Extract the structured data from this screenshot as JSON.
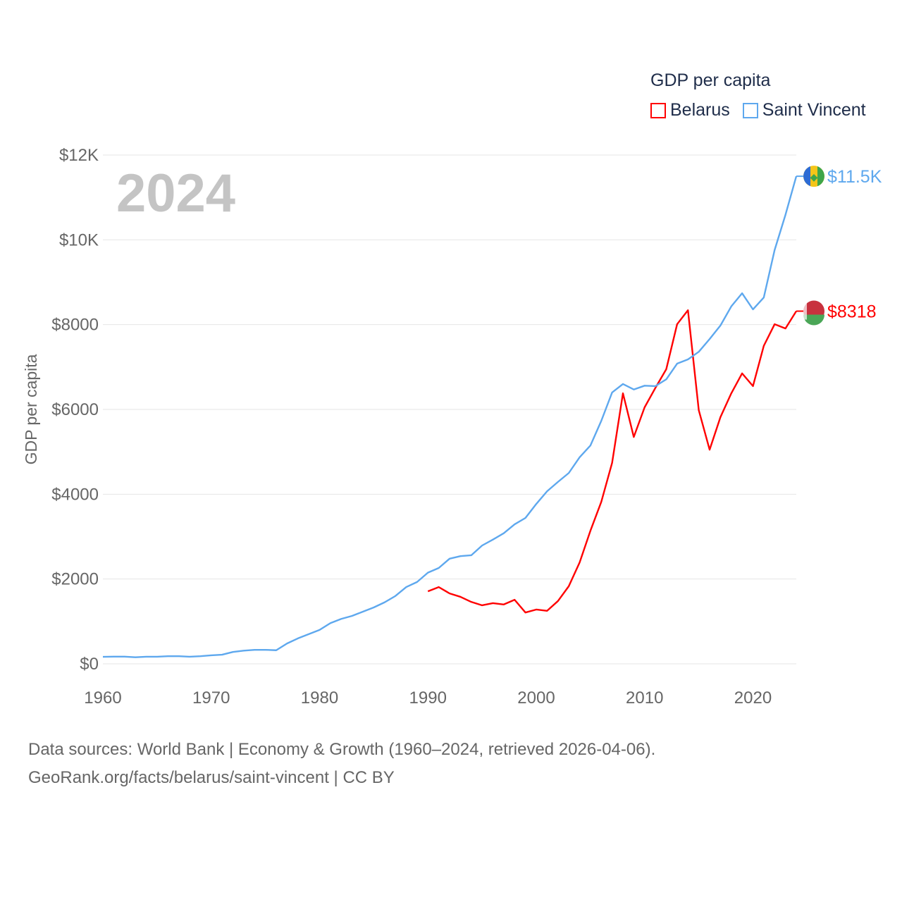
{
  "chart_data": {
    "type": "line",
    "title": "GDP per capita",
    "ylabel": "GDP per capita",
    "xlabel": "",
    "year_label": "2024",
    "xlim": [
      1960,
      2024
    ],
    "ylim": [
      0,
      12000
    ],
    "x_ticks": [
      "1960",
      "1970",
      "1980",
      "1990",
      "2000",
      "2010",
      "2020"
    ],
    "y_ticks": [
      {
        "value": 0,
        "label": "$0"
      },
      {
        "value": 2000,
        "label": "$2000"
      },
      {
        "value": 4000,
        "label": "$4000"
      },
      {
        "value": 6000,
        "label": "$6000"
      },
      {
        "value": 8000,
        "label": "$8000"
      },
      {
        "value": 10000,
        "label": "$10K"
      },
      {
        "value": 12000,
        "label": "$12K"
      }
    ],
    "grid": true,
    "legend_position": "top-right",
    "series": [
      {
        "name": "Belarus",
        "color": "#ff0000",
        "end_label": "$8318",
        "start_year": 1990,
        "values": [
          1710,
          1810,
          1660,
          1580,
          1460,
          1380,
          1430,
          1400,
          1510,
          1210,
          1280,
          1250,
          1480,
          1830,
          2390,
          3140,
          3820,
          4740,
          6380,
          5350,
          6050,
          6510,
          6950,
          8010,
          8340,
          5980,
          5050,
          5820,
          6380,
          6850,
          6550,
          7500,
          8010,
          7910,
          8318
        ]
      },
      {
        "name": "Saint Vincent",
        "color": "#5ea8ee",
        "end_label": "$11.5K",
        "start_year": 1960,
        "values": [
          166,
          170,
          170,
          155,
          168,
          168,
          180,
          180,
          168,
          180,
          200,
          215,
          280,
          310,
          330,
          330,
          320,
          480,
          600,
          700,
          800,
          960,
          1060,
          1130,
          1230,
          1330,
          1450,
          1600,
          1810,
          1930,
          2150,
          2260,
          2480,
          2540,
          2560,
          2790,
          2930,
          3080,
          3290,
          3440,
          3770,
          4070,
          4290,
          4500,
          4870,
          5150,
          5730,
          6400,
          6600,
          6470,
          6560,
          6550,
          6710,
          7080,
          7180,
          7360,
          7660,
          7980,
          8430,
          8740,
          8360,
          8640,
          9760,
          10590,
          11500
        ]
      }
    ]
  },
  "footer": {
    "line1": "Data sources: World Bank | Economy & Growth (1960–2024, retrieved 2026-04-06).",
    "line2": "GeoRank.org/facts/belarus/saint-vincent | CC BY"
  }
}
